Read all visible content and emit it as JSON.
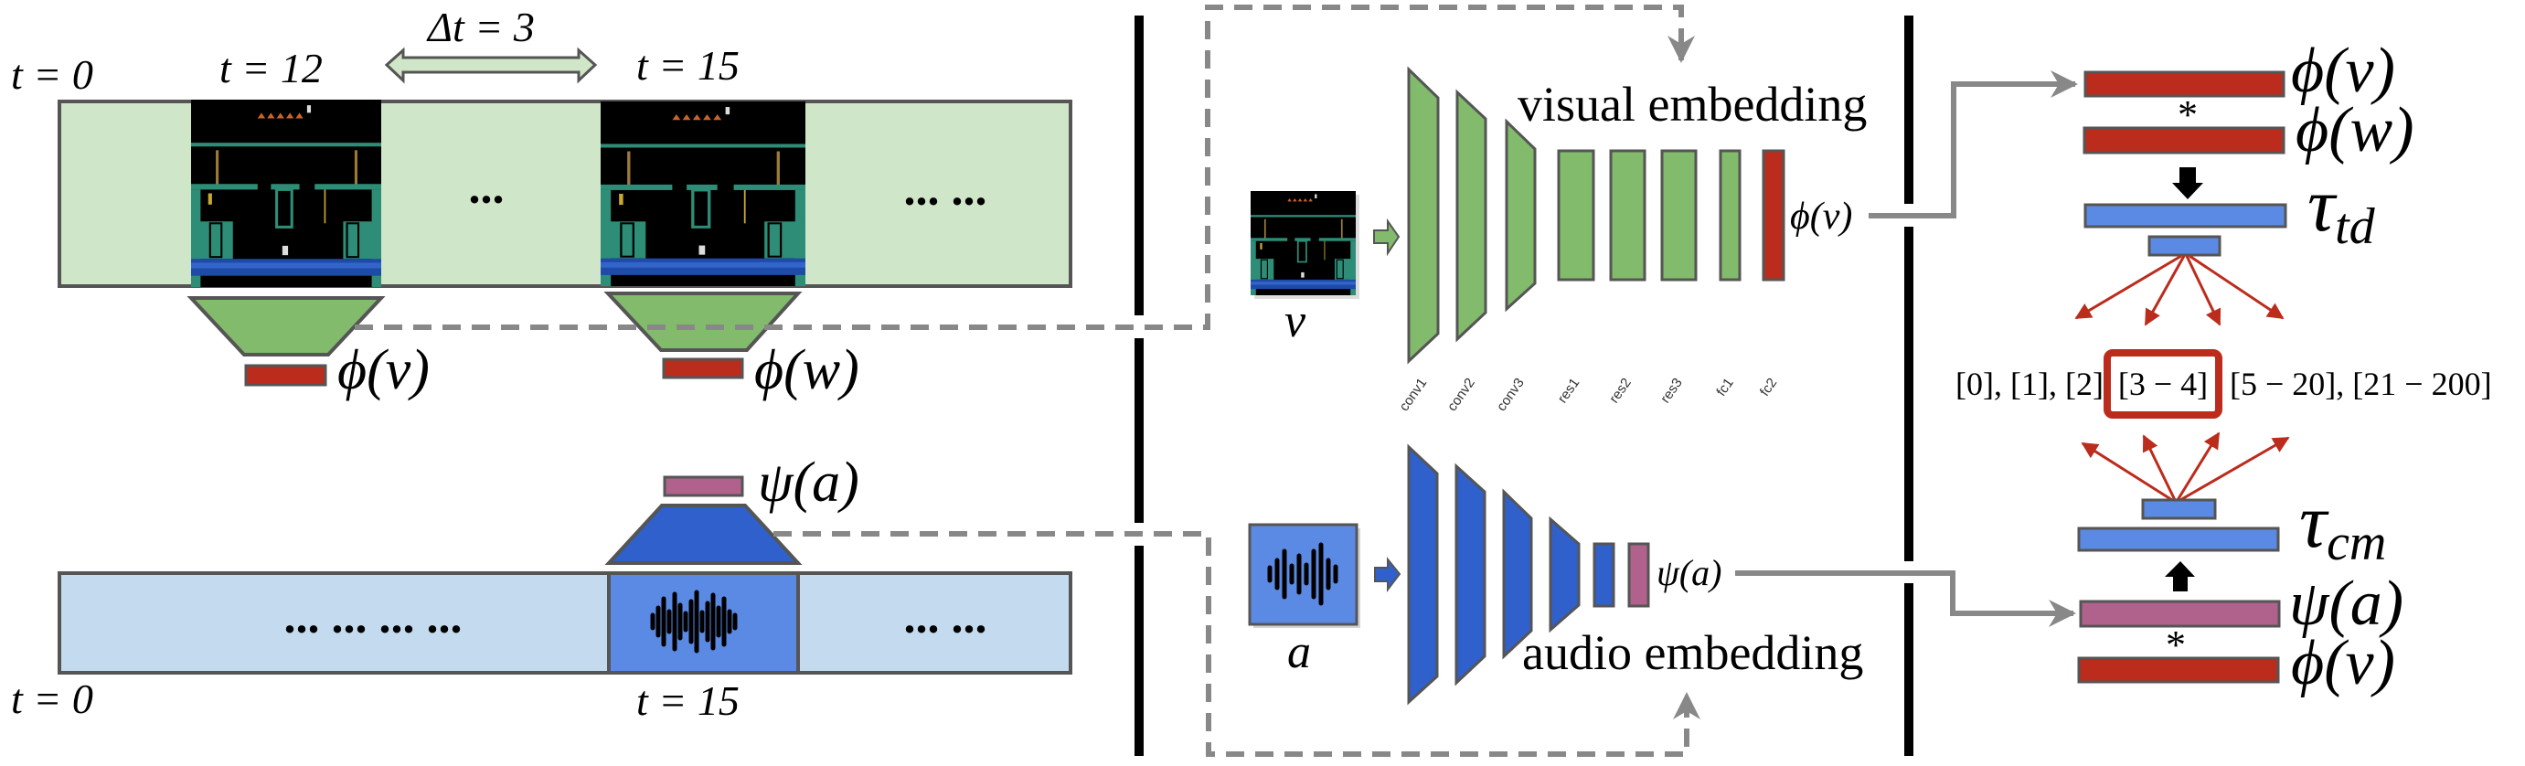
{
  "video_timeline": {
    "t_start": "t = 0",
    "t_first": "t = 12",
    "t_second": "t = 15",
    "delta": "Δt = 3",
    "ellipsis_mid": "...",
    "ellipsis_end": "... ...",
    "phi_v": "ϕ(v)",
    "phi_w": "ϕ(w)"
  },
  "audio_timeline": {
    "t_start": "t = 0",
    "t_clip": "t = 15",
    "ellipsis_left": "... ... ... ...",
    "ellipsis_right": "... ...",
    "psi_a": "ψ(a)"
  },
  "visual_net": {
    "input_label": "v",
    "title": "visual embedding",
    "layers": [
      "conv1",
      "conv2",
      "conv3",
      "res1",
      "res2",
      "res3",
      "fc1",
      "fc2"
    ],
    "output": "ϕ(v)"
  },
  "audio_net": {
    "input_label": "a",
    "title": "audio embedding",
    "output": "ψ(a)"
  },
  "tasks": {
    "td": {
      "top": "ϕ(v)",
      "op": "*",
      "bottom": "ϕ(w)",
      "tau": "τ",
      "sub": "td"
    },
    "bins": {
      "before": "[0], [1], [2],",
      "selected": "[3 − 4]",
      "after": "[5 − 20], [21 − 200]"
    },
    "cm": {
      "top": "ψ(a)",
      "op": "*",
      "bottom": "ϕ(v)",
      "tau": "τ",
      "sub": "cm"
    }
  },
  "colors": {
    "green": "#82bb6b",
    "light_green": "#d0e6c8",
    "red": "#bc2c1c",
    "blue": "#2f60cc",
    "mid_blue": "#5b8ae4",
    "light_blue": "#c4dbef",
    "pink": "#b0628c",
    "gray": "#888888"
  }
}
